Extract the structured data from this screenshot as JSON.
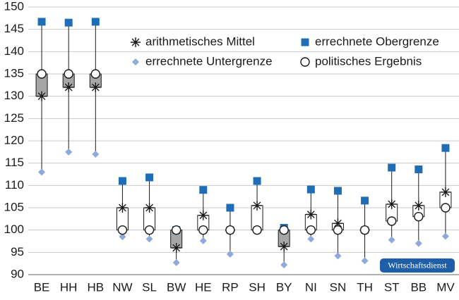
{
  "chart_data": {
    "type": "range-box",
    "categories": [
      "BE",
      "HH",
      "HB",
      "NW",
      "SL",
      "BW",
      "HE",
      "RP",
      "SH",
      "BY",
      "NI",
      "SN",
      "TH",
      "ST",
      "BB",
      "MV"
    ],
    "series": [
      {
        "name": "arithmetisches Mittel",
        "color": "#1a1a1a",
        "marker": "asterisk",
        "values": [
          130,
          132,
          132,
          105,
          105,
          96,
          103.3,
          100,
          105.5,
          96.3,
          103.5,
          101.5,
          100,
          105.8,
          105.5,
          108.5
        ]
      },
      {
        "name": "errechnete Obergrenze",
        "color": "#1f6db5",
        "marker": "square",
        "values": [
          146.7,
          146.5,
          146.7,
          111,
          111.8,
          100,
          109,
          105,
          111,
          100.5,
          109.1,
          108.8,
          106.6,
          114,
          113.6,
          118.4
        ]
      },
      {
        "name": "errechnete Untergrenze",
        "color": "#8eaadb",
        "marker": "diamond",
        "values": [
          113,
          117.5,
          117,
          98.5,
          98,
          92.7,
          97.6,
          94.6,
          100,
          92.2,
          98,
          94.2,
          93.1,
          97.8,
          97,
          98.6
        ]
      },
      {
        "name": "politisches Ergebnis",
        "color": "#1a1a1a",
        "marker": "circle",
        "values": [
          135,
          135,
          135,
          100,
          100,
          100,
          100,
          100,
          100,
          100,
          100,
          100,
          100,
          102,
          103,
          105
        ]
      }
    ],
    "ylim": [
      90,
      150
    ],
    "yticks": [
      90,
      95,
      100,
      105,
      110,
      115,
      120,
      125,
      130,
      135,
      140,
      145,
      150
    ],
    "grid": true,
    "box_fill": "#a6a6a6",
    "source_badge": "Wirtschaftsdienst"
  }
}
